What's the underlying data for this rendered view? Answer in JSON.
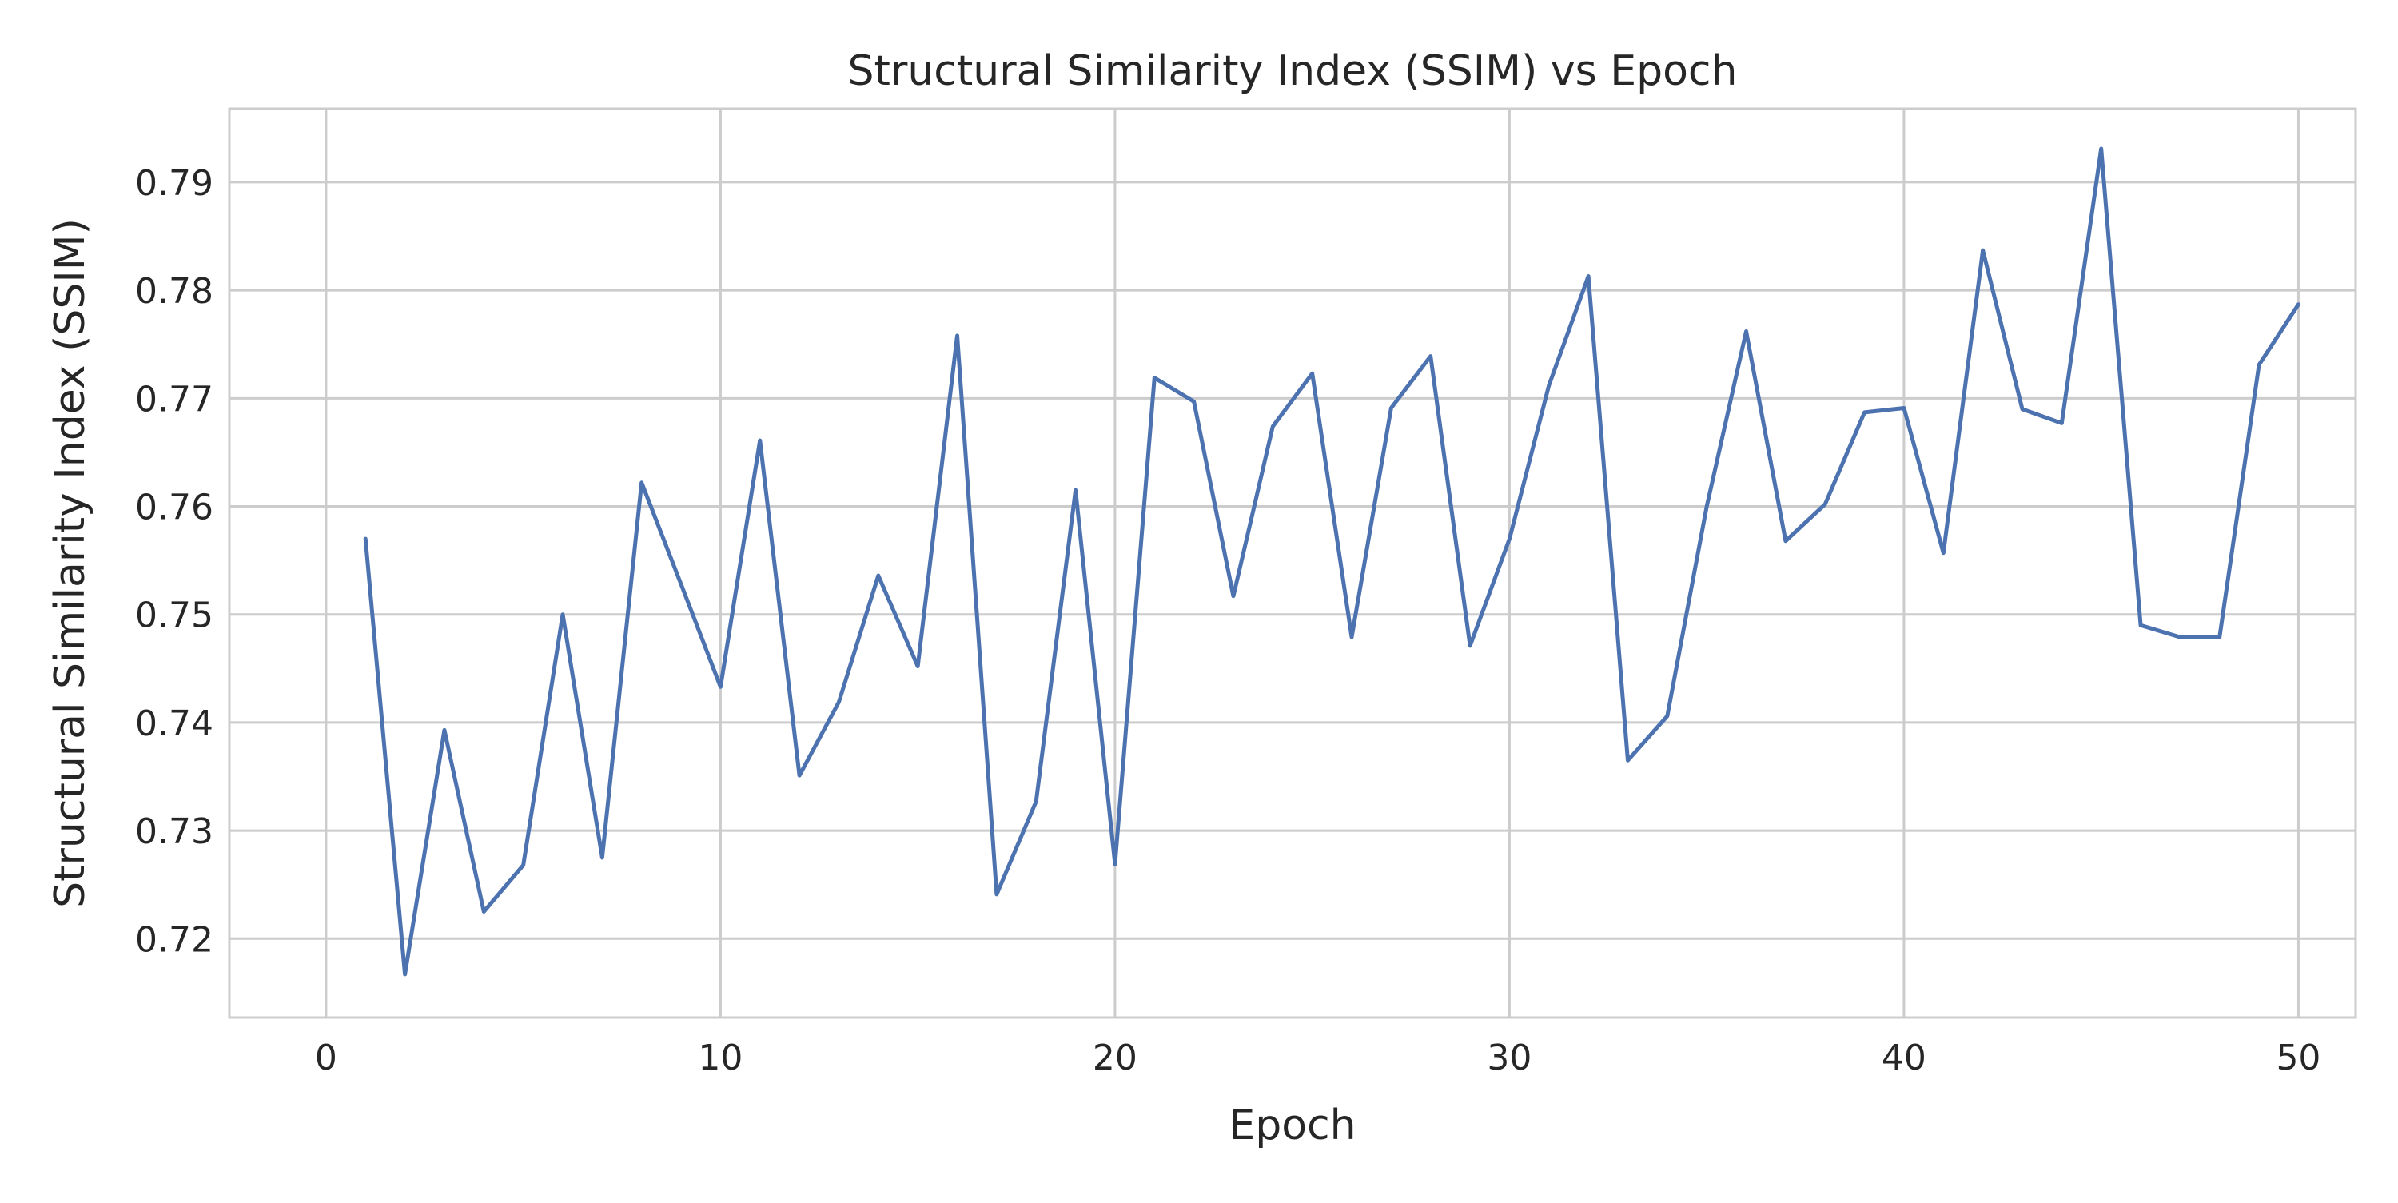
{
  "chart_data": {
    "type": "line",
    "title": "Structural Similarity Index (SSIM) vs Epoch",
    "xlabel": "Epoch",
    "ylabel": "Structural Similarity Index (SSIM)",
    "xlim": [
      -2.45,
      51.45
    ],
    "ylim": [
      0.7127,
      0.7968
    ],
    "xticks": [
      0,
      10,
      20,
      30,
      40,
      50
    ],
    "xtick_labels": [
      "0",
      "10",
      "20",
      "30",
      "40",
      "50"
    ],
    "yticks": [
      0.72,
      0.73,
      0.74,
      0.75,
      0.76,
      0.77,
      0.78,
      0.79
    ],
    "ytick_labels": [
      "0.72",
      "0.73",
      "0.74",
      "0.75",
      "0.76",
      "0.77",
      "0.78",
      "0.79"
    ],
    "grid": true,
    "line_color": "#4c72b0",
    "x": [
      1,
      2,
      3,
      4,
      5,
      6,
      7,
      8,
      9,
      10,
      11,
      12,
      13,
      14,
      15,
      16,
      17,
      18,
      19,
      20,
      21,
      22,
      23,
      24,
      25,
      26,
      27,
      28,
      29,
      30,
      31,
      32,
      33,
      34,
      35,
      36,
      37,
      38,
      39,
      40,
      41,
      42,
      43,
      44,
      45,
      46,
      47,
      48,
      49,
      50
    ],
    "y": [
      0.757,
      0.7167,
      0.7393,
      0.7225,
      0.7268,
      0.75,
      0.7275,
      0.7622,
      0.7528,
      0.7433,
      0.7661,
      0.7351,
      0.7419,
      0.7536,
      0.7452,
      0.7758,
      0.7241,
      0.7327,
      0.7615,
      0.7269,
      0.7719,
      0.7697,
      0.7517,
      0.7674,
      0.7723,
      0.7479,
      0.7691,
      0.7739,
      0.7471,
      0.757,
      0.7712,
      0.7813,
      0.7365,
      0.7406,
      0.76,
      0.7762,
      0.7568,
      0.7602,
      0.7687,
      0.7691,
      0.7557,
      0.7837,
      0.769,
      0.7677,
      0.7931,
      0.749,
      0.7479,
      0.7479,
      0.7731,
      0.7787
    ]
  }
}
